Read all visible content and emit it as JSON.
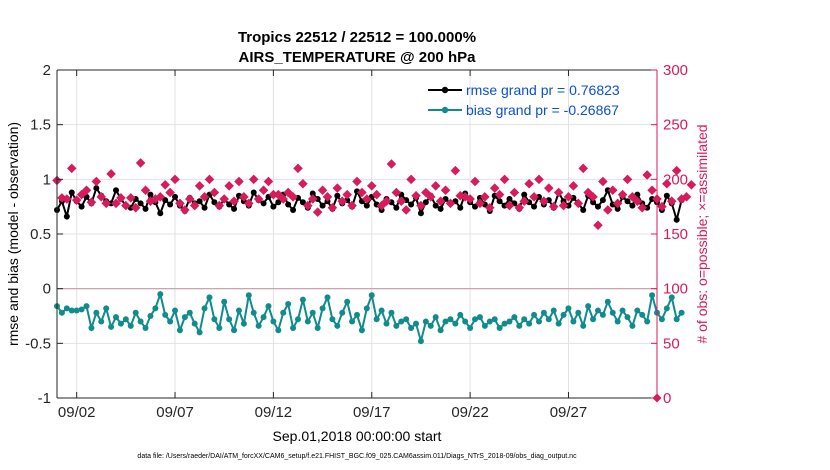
{
  "chart_data": {
    "type": "line",
    "title": [
      "Tropics 22512 / 22512 = 100.000%",
      "AIRS_TEMPERATURE @ 200 hPa"
    ],
    "xlabel": "Sep.01,2018 00:00:00 start",
    "ylabel": "rmse and bias (model - observation)",
    "y2label": "# of obs: o=possible; ×=assimilated",
    "footer": "data file: /Users/raeder/DAI/ATM_forcXX/CAM6_setup/f.e21.FHIST_BGC.f09_025.CAM6assim.011/Diags_NTrS_2018-09/obs_diag_output.nc",
    "xlim": [
      1.0,
      31.5
    ],
    "ylim": [
      -1,
      2
    ],
    "y2lim": [
      0,
      300
    ],
    "xticks": [
      2,
      7,
      12,
      17,
      22,
      27
    ],
    "xtick_labels": [
      "09/02",
      "09/07",
      "09/12",
      "09/17",
      "09/22",
      "09/27"
    ],
    "yticks": [
      -1,
      -0.5,
      0,
      0.5,
      1,
      1.5,
      2
    ],
    "ytick_labels": [
      "-1",
      "-0.5",
      "0",
      "0.5",
      "1",
      "1.5",
      "2"
    ],
    "y2ticks": [
      0,
      50,
      100,
      150,
      200,
      250,
      300
    ],
    "y2tick_labels": [
      "0",
      "50",
      "100",
      "150",
      "200",
      "250",
      "300"
    ],
    "grid": true,
    "legend_position": "top-right",
    "x_start": 1.0,
    "x_step": 0.25,
    "series": [
      {
        "name": "rmse grand pr = 0.76823",
        "axis": "left",
        "color": "#000000",
        "marker": "circle",
        "values": [
          0.72,
          0.8,
          0.66,
          0.88,
          0.8,
          0.75,
          0.84,
          0.78,
          0.92,
          0.85,
          0.8,
          0.78,
          0.9,
          0.82,
          0.76,
          0.74,
          0.82,
          0.78,
          0.73,
          0.86,
          0.79,
          0.69,
          0.81,
          0.77,
          0.84,
          0.76,
          0.71,
          0.83,
          0.78,
          0.8,
          0.74,
          0.86,
          0.79,
          0.75,
          0.82,
          0.77,
          0.73,
          0.85,
          0.8,
          0.76,
          0.88,
          0.81,
          0.78,
          0.84,
          0.75,
          0.79,
          0.86,
          0.77,
          0.72,
          0.83,
          0.79,
          0.74,
          0.87,
          0.82,
          0.76,
          0.8,
          0.73,
          0.85,
          0.78,
          0.81,
          0.75,
          0.89,
          0.8,
          0.76,
          0.84,
          0.77,
          0.72,
          0.82,
          0.79,
          0.74,
          0.86,
          0.81,
          0.77,
          0.83,
          0.69,
          0.79,
          0.85,
          0.76,
          0.73,
          0.82,
          0.78,
          0.8,
          0.74,
          0.87,
          0.79,
          0.75,
          0.83,
          0.77,
          0.71,
          0.85,
          0.8,
          0.76,
          0.82,
          0.78,
          0.73,
          0.86,
          0.79,
          0.75,
          0.84,
          0.77,
          0.81,
          0.74,
          0.88,
          0.8,
          0.76,
          0.83,
          0.78,
          0.72,
          0.85,
          0.79,
          0.75,
          0.81,
          0.9,
          0.77,
          0.73,
          0.84,
          0.8,
          0.76,
          0.86,
          0.78,
          0.74,
          0.82,
          0.79,
          0.72,
          0.85,
          0.78,
          0.63,
          0.81
        ],
        "values_tail": []
      },
      {
        "name": "bias grand pr = -0.26867",
        "axis": "left",
        "color": "#108c8c",
        "marker": "circle",
        "values": [
          -0.16,
          -0.22,
          -0.18,
          -0.2,
          -0.2,
          -0.19,
          -0.16,
          -0.36,
          -0.22,
          -0.3,
          -0.18,
          -0.35,
          -0.26,
          -0.32,
          -0.28,
          -0.34,
          -0.22,
          -0.3,
          -0.36,
          -0.25,
          -0.18,
          -0.05,
          -0.24,
          -0.3,
          -0.2,
          -0.38,
          -0.26,
          -0.22,
          -0.32,
          -0.4,
          -0.18,
          -0.08,
          -0.28,
          -0.36,
          -0.12,
          -0.28,
          -0.38,
          -0.2,
          -0.32,
          -0.06,
          -0.22,
          -0.34,
          -0.26,
          -0.16,
          -0.3,
          -0.38,
          -0.22,
          -0.14,
          -0.36,
          -0.28,
          -0.1,
          -0.3,
          -0.22,
          -0.36,
          -0.18,
          -0.08,
          -0.28,
          -0.34,
          -0.22,
          -0.12,
          -0.3,
          -0.24,
          -0.38,
          -0.18,
          -0.06,
          -0.28,
          -0.2,
          -0.32,
          -0.22,
          -0.34,
          -0.3,
          -0.28,
          -0.36,
          -0.32,
          -0.48,
          -0.3,
          -0.34,
          -0.26,
          -0.38,
          -0.3,
          -0.28,
          -0.32,
          -0.24,
          -0.3,
          -0.36,
          -0.28,
          -0.26,
          -0.34,
          -0.3,
          -0.28,
          -0.36,
          -0.32,
          -0.3,
          -0.26,
          -0.34,
          -0.28,
          -0.32,
          -0.24,
          -0.3,
          -0.22,
          -0.28,
          -0.2,
          -0.32,
          -0.24,
          -0.18,
          -0.3,
          -0.22,
          -0.34,
          -0.16,
          -0.28,
          -0.2,
          -0.24,
          -0.12,
          -0.22,
          -0.3,
          -0.2,
          -0.26,
          -0.34,
          -0.2,
          -0.24,
          -0.3,
          -0.06,
          -0.22,
          -0.28,
          -0.18,
          -0.08,
          -0.28,
          -0.22
        ],
        "values_tail": []
      },
      {
        "name": "# of obs assimilated",
        "axis": "right",
        "color": "#d81b5a",
        "marker": "x",
        "values": [
          199,
          183,
          182,
          210,
          181,
          186,
          190,
          179,
          198,
          184,
          178,
          205,
          178,
          183,
          176,
          183,
          174,
          215,
          190,
          180,
          182,
          184,
          195,
          188,
          200,
          178,
          172,
          182,
          176,
          194,
          184,
          200,
          188,
          176,
          182,
          194,
          180,
          198,
          184,
          178,
          200,
          182,
          190,
          198,
          186,
          186,
          182,
          188,
          184,
          210,
          196,
          176,
          182,
          170,
          190,
          184,
          174,
          192,
          180,
          186,
          176,
          198,
          188,
          182,
          194,
          186,
          176,
          180,
          214,
          188,
          180,
          172,
          200,
          185,
          176,
          188,
          184,
          194,
          180,
          190,
          178,
          208,
          185,
          184,
          182,
          198,
          178,
          184,
          174,
          192,
          186,
          200,
          176,
          188,
          174,
          180,
          196,
          184,
          200,
          180,
          192,
          175,
          188,
          176,
          184,
          194,
          178,
          210,
          188,
          184,
          158,
          198,
          172,
          190,
          178,
          186,
          200,
          184,
          180,
          174,
          204,
          190,
          182,
          175,
          196,
          180,
          208,
          182,
          184,
          195
        ],
        "values_tail": []
      }
    ],
    "extra_marker": {
      "x": 31.5,
      "y2": 0,
      "color": "#d81b5a"
    }
  }
}
